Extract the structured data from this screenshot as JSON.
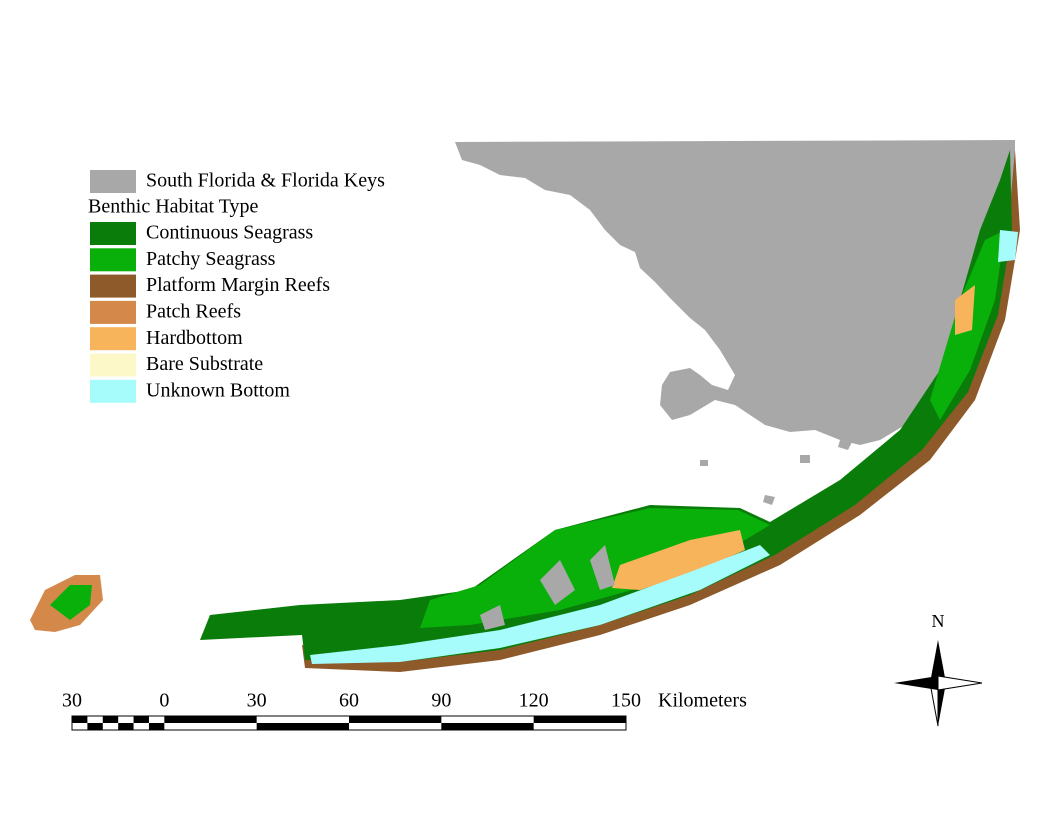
{
  "legend": {
    "base": {
      "label": "South Florida & Florida Keys",
      "color": "#a8a8a8"
    },
    "title": "Benthic Habitat Type",
    "items": [
      {
        "label": "Continuous Seagrass",
        "color": "#0a7c0a"
      },
      {
        "label": "Patchy Seagrass",
        "color": "#09b009"
      },
      {
        "label": "Platform Margin Reefs",
        "color": "#8e5a2a"
      },
      {
        "label": "Patch Reefs",
        "color": "#d4884a"
      },
      {
        "label": "Hardbottom",
        "color": "#f7b45a"
      },
      {
        "label": "Bare Substrate",
        "color": "#fdf8c8"
      },
      {
        "label": "Unknown Bottom",
        "color": "#a6fbfb"
      }
    ]
  },
  "scale_bar": {
    "labels": [
      30,
      0,
      30,
      60,
      90,
      120,
      150
    ],
    "unit": "Kilometers"
  },
  "north_arrow": {
    "label": "N"
  }
}
